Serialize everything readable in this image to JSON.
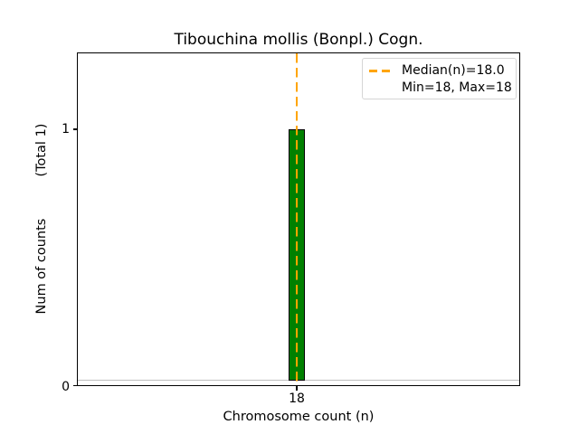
{
  "figure": {
    "title": "Tibouchina mollis (Bonpl.) Cogn.",
    "xlabel": "Chromosome count (n)",
    "ylabel_display": "Num of counts          (Total 1)",
    "xtick_label": "18",
    "ytick_zero": "0",
    "ytick_one": "1",
    "legend": {
      "median_label": "Median(n)=18.0",
      "minmax_label": "Min=18, Max=18"
    }
  },
  "chart_data": {
    "type": "bar",
    "title": "Tibouchina mollis (Bonpl.) Cogn.",
    "xlabel": "Chromosome count (n)",
    "ylabel": "Num of counts (Total 1)",
    "categories": [
      18
    ],
    "values": [
      1
    ],
    "total_counts": 1,
    "xticks": [
      18
    ],
    "yticks": [
      0,
      1
    ],
    "ylim": [
      0,
      1.3
    ],
    "median_n": 18.0,
    "min_n": 18,
    "max_n": 18,
    "legend_entries": [
      "Median(n)=18.0",
      "Min=18, Max=18"
    ],
    "legend_position": "upper right",
    "grid": false,
    "colors": {
      "bar_fill": "#008000",
      "bar_edge": "#000000",
      "median_line": "#FFA500",
      "zero_baseline": "#bfbfbf",
      "text": "#000000",
      "background": "#ffffff"
    }
  }
}
